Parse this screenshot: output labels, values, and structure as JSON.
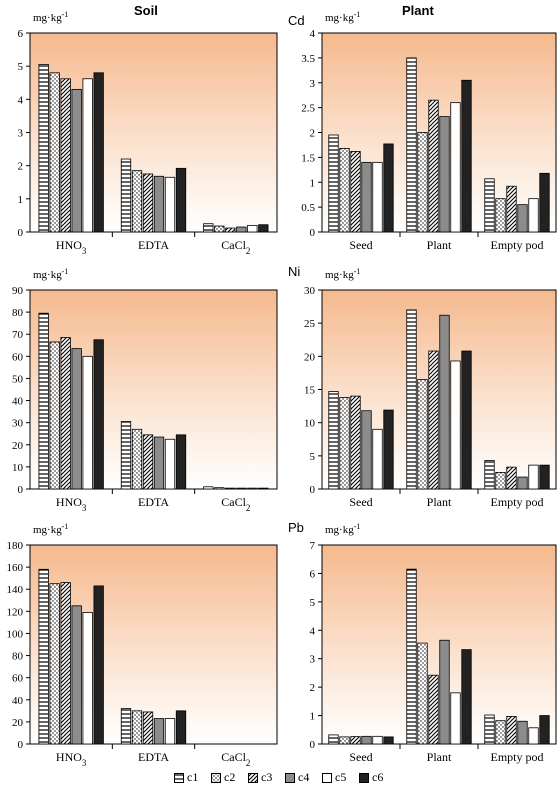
{
  "column_titles": [
    "Soil",
    "Plant"
  ],
  "row_labels": [
    "",
    "Cd",
    "Ni",
    "Pb"
  ],
  "legend": {
    "entries": [
      "c1",
      "c2",
      "c3",
      "c4",
      "c5",
      "c6"
    ]
  },
  "chart_data": [
    {
      "type": "bar",
      "panel": "soil-cd",
      "unit_prefix": "mg·kg",
      "unit_exp": "-1",
      "ylim": [
        0,
        6
      ],
      "yticks": [
        0,
        1,
        2,
        3,
        4,
        5,
        6
      ],
      "categories": [
        "HNO3",
        "EDTA",
        "CaCl2"
      ],
      "series": [
        {
          "name": "c1",
          "values": [
            5.05,
            2.2,
            0.25
          ]
        },
        {
          "name": "c2",
          "values": [
            4.8,
            1.85,
            0.18
          ]
        },
        {
          "name": "c3",
          "values": [
            4.62,
            1.75,
            0.12
          ]
        },
        {
          "name": "c4",
          "values": [
            4.3,
            1.68,
            0.15
          ]
        },
        {
          "name": "c5",
          "values": [
            4.62,
            1.65,
            0.2
          ]
        },
        {
          "name": "c6",
          "values": [
            4.8,
            1.92,
            0.22
          ]
        }
      ]
    },
    {
      "type": "bar",
      "panel": "plant-cd",
      "unit_prefix": "mg·kg",
      "unit_exp": "-1",
      "ylim": [
        0,
        4
      ],
      "yticks": [
        0,
        0.5,
        1,
        1.5,
        2,
        2.5,
        3,
        3.5,
        4
      ],
      "categories": [
        "Seed",
        "Plant",
        "Empty pod"
      ],
      "series": [
        {
          "name": "c1",
          "values": [
            1.95,
            3.5,
            1.07
          ]
        },
        {
          "name": "c2",
          "values": [
            1.68,
            2.0,
            0.67
          ]
        },
        {
          "name": "c3",
          "values": [
            1.62,
            2.65,
            0.92
          ]
        },
        {
          "name": "c4",
          "values": [
            1.4,
            2.32,
            0.55
          ]
        },
        {
          "name": "c5",
          "values": [
            1.4,
            2.6,
            0.67
          ]
        },
        {
          "name": "c6",
          "values": [
            1.77,
            3.05,
            1.18
          ]
        }
      ]
    },
    {
      "type": "bar",
      "panel": "soil-ni",
      "unit_prefix": "mg·kg",
      "unit_exp": "-1",
      "ylim": [
        0,
        90
      ],
      "yticks": [
        0,
        10,
        20,
        30,
        40,
        50,
        60,
        70,
        80,
        90
      ],
      "categories": [
        "HNO3",
        "EDTA",
        "CaCl2"
      ],
      "series": [
        {
          "name": "c1",
          "values": [
            79.5,
            30.5,
            1.0
          ]
        },
        {
          "name": "c2",
          "values": [
            66.5,
            27.0,
            0.6
          ]
        },
        {
          "name": "c3",
          "values": [
            68.5,
            24.5,
            0.4
          ]
        },
        {
          "name": "c4",
          "values": [
            63.5,
            23.5,
            0.4
          ]
        },
        {
          "name": "c5",
          "values": [
            60.0,
            22.5,
            0.4
          ]
        },
        {
          "name": "c6",
          "values": [
            67.5,
            24.5,
            0.4
          ]
        }
      ]
    },
    {
      "type": "bar",
      "panel": "plant-ni",
      "unit_prefix": "mg·kg",
      "unit_exp": "-1",
      "ylim": [
        0,
        30
      ],
      "yticks": [
        0,
        5,
        10,
        15,
        20,
        25,
        30
      ],
      "categories": [
        "Seed",
        "Plant",
        "Empty pod"
      ],
      "series": [
        {
          "name": "c1",
          "values": [
            14.7,
            27.0,
            4.3
          ]
        },
        {
          "name": "c2",
          "values": [
            13.8,
            16.5,
            2.5
          ]
        },
        {
          "name": "c3",
          "values": [
            14.0,
            20.8,
            3.3
          ]
        },
        {
          "name": "c4",
          "values": [
            11.8,
            26.2,
            1.8
          ]
        },
        {
          "name": "c5",
          "values": [
            9.0,
            19.3,
            3.6
          ]
        },
        {
          "name": "c6",
          "values": [
            11.9,
            20.8,
            3.6
          ]
        }
      ]
    },
    {
      "type": "bar",
      "panel": "soil-pb",
      "unit_prefix": "mg·kg",
      "unit_exp": "-1",
      "ylim": [
        0,
        180
      ],
      "yticks": [
        0,
        20,
        40,
        60,
        80,
        100,
        120,
        140,
        160,
        180
      ],
      "categories": [
        "HNO3",
        "EDTA",
        "CaCl2"
      ],
      "series": [
        {
          "name": "c1",
          "values": [
            158,
            32,
            0
          ]
        },
        {
          "name": "c2",
          "values": [
            145,
            30,
            0
          ]
        },
        {
          "name": "c3",
          "values": [
            146,
            29,
            0
          ]
        },
        {
          "name": "c4",
          "values": [
            125,
            23,
            0
          ]
        },
        {
          "name": "c5",
          "values": [
            119,
            23,
            0
          ]
        },
        {
          "name": "c6",
          "values": [
            143,
            30,
            0
          ]
        }
      ]
    },
    {
      "type": "bar",
      "panel": "plant-pb",
      "unit_prefix": "mg·kg",
      "unit_exp": "-1",
      "ylim": [
        0,
        7
      ],
      "yticks": [
        0,
        1,
        2,
        3,
        4,
        5,
        6,
        7
      ],
      "categories": [
        "Seed",
        "Plant",
        "Empty pod"
      ],
      "series": [
        {
          "name": "c1",
          "values": [
            0.32,
            6.15,
            1.02
          ]
        },
        {
          "name": "c2",
          "values": [
            0.25,
            3.55,
            0.82
          ]
        },
        {
          "name": "c3",
          "values": [
            0.26,
            2.42,
            0.97
          ]
        },
        {
          "name": "c4",
          "values": [
            0.27,
            3.65,
            0.8
          ]
        },
        {
          "name": "c5",
          "values": [
            0.27,
            1.8,
            0.57
          ]
        },
        {
          "name": "c6",
          "values": [
            0.25,
            3.32,
            1.0
          ]
        }
      ]
    }
  ]
}
